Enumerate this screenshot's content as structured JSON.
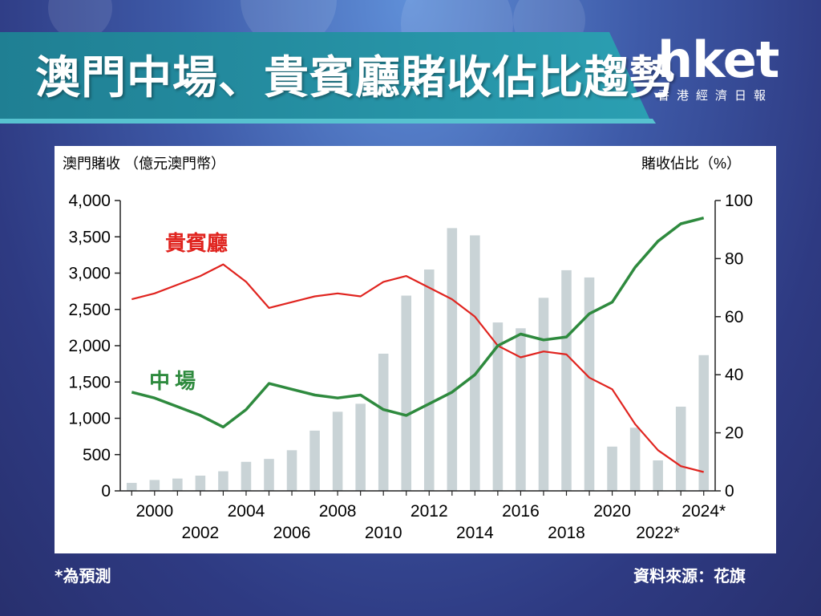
{
  "header": {
    "title": "澳門中場、貴賓廳賭收佔比趨勢",
    "logo_main": "hket",
    "logo_sub": "香港經濟日報"
  },
  "footer": {
    "note": "*為預測",
    "source": "資料來源：花旗"
  },
  "colors": {
    "vip_line": "#e0241f",
    "mass_line": "#2e8a3e",
    "bars": "#c9d3d6",
    "banner": "#2696a8"
  },
  "chart_data": {
    "type": "bar+line",
    "left_axis_label": "澳門賭收 （億元澳門幣）",
    "right_axis_label": "賭收佔比（%）",
    "ylim_left": [
      0,
      4000
    ],
    "ylim_right": [
      0,
      100
    ],
    "y_ticks_left": [
      "0",
      "500",
      "1,000",
      "1,500",
      "2,000",
      "2,500",
      "3,000",
      "3,500",
      "4,000"
    ],
    "y_ticks_right": [
      "0",
      "20",
      "40",
      "60",
      "80",
      "100"
    ],
    "x_tick_labels": [
      "2000",
      "2002",
      "2004",
      "2006",
      "2008",
      "2010",
      "2012",
      "2014",
      "2016",
      "2018",
      "2020",
      "2022*",
      "2024*"
    ],
    "categories": [
      "1999",
      "2000",
      "2001",
      "2002",
      "2003",
      "2004",
      "2005",
      "2006",
      "2007",
      "2008",
      "2009",
      "2010",
      "2011",
      "2012",
      "2013",
      "2014",
      "2015",
      "2016",
      "2017",
      "2018",
      "2019",
      "2020",
      "2021",
      "2022",
      "2023",
      "2024"
    ],
    "series": [
      {
        "type": "bar",
        "axis": "left",
        "values": [
          110,
          150,
          170,
          210,
          270,
          400,
          440,
          560,
          830,
          1090,
          1200,
          1890,
          2690,
          3050,
          3620,
          3520,
          2320,
          2240,
          2660,
          3040,
          2940,
          610,
          870,
          420,
          1160,
          1870
        ]
      },
      {
        "type": "line",
        "axis": "right",
        "name": "貴賓廳",
        "values": [
          66,
          68,
          71,
          74,
          78,
          72,
          63,
          65,
          67,
          68,
          67,
          72,
          74,
          70,
          66,
          60,
          50,
          46,
          48,
          47,
          39,
          35,
          23,
          14,
          8.5,
          6.5
        ]
      },
      {
        "type": "line",
        "axis": "right",
        "name": "中場",
        "values": [
          34,
          32,
          29,
          26,
          22,
          28,
          37,
          35,
          33,
          32,
          33,
          28,
          26,
          30,
          34,
          40,
          50,
          54,
          52,
          53,
          61,
          65,
          77,
          86,
          92,
          94
        ]
      }
    ]
  }
}
